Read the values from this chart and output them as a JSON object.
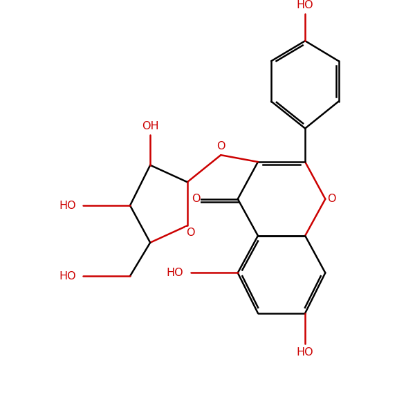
{
  "bg_color": "#ffffff",
  "bond_color": "#000000",
  "heteroatom_color": "#cc0000",
  "line_width": 1.8,
  "font_size": 11.5,
  "xlim": [
    0,
    10
  ],
  "ylim": [
    0,
    10
  ]
}
